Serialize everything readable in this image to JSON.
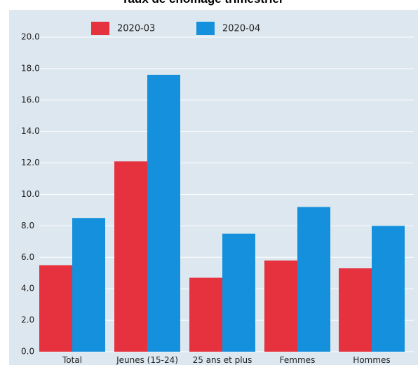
{
  "chart_data": {
    "type": "bar",
    "title": "Taux de chômage trimestriel",
    "categories": [
      "Total",
      "Jeunes (15-24)",
      "25 ans et plus",
      "Femmes",
      "Hommes"
    ],
    "series": [
      {
        "name": "2020-03",
        "color": "#e5323e",
        "values": [
          5.5,
          12.1,
          4.7,
          5.8,
          5.3
        ]
      },
      {
        "name": "2020-04",
        "color": "#1490dc",
        "values": [
          8.5,
          17.6,
          7.5,
          9.2,
          8.0
        ]
      }
    ],
    "yticks": [
      "0.0",
      "2.0",
      "4.0",
      "6.0",
      "8.0",
      "10.0",
      "12.0",
      "14.0",
      "16.0",
      "18.0",
      "20.0"
    ],
    "ylim": [
      0,
      20
    ],
    "grid": true,
    "legend_position": "top-center",
    "plot_background": "#dde7ef",
    "gridline_color": "#ffffff"
  }
}
